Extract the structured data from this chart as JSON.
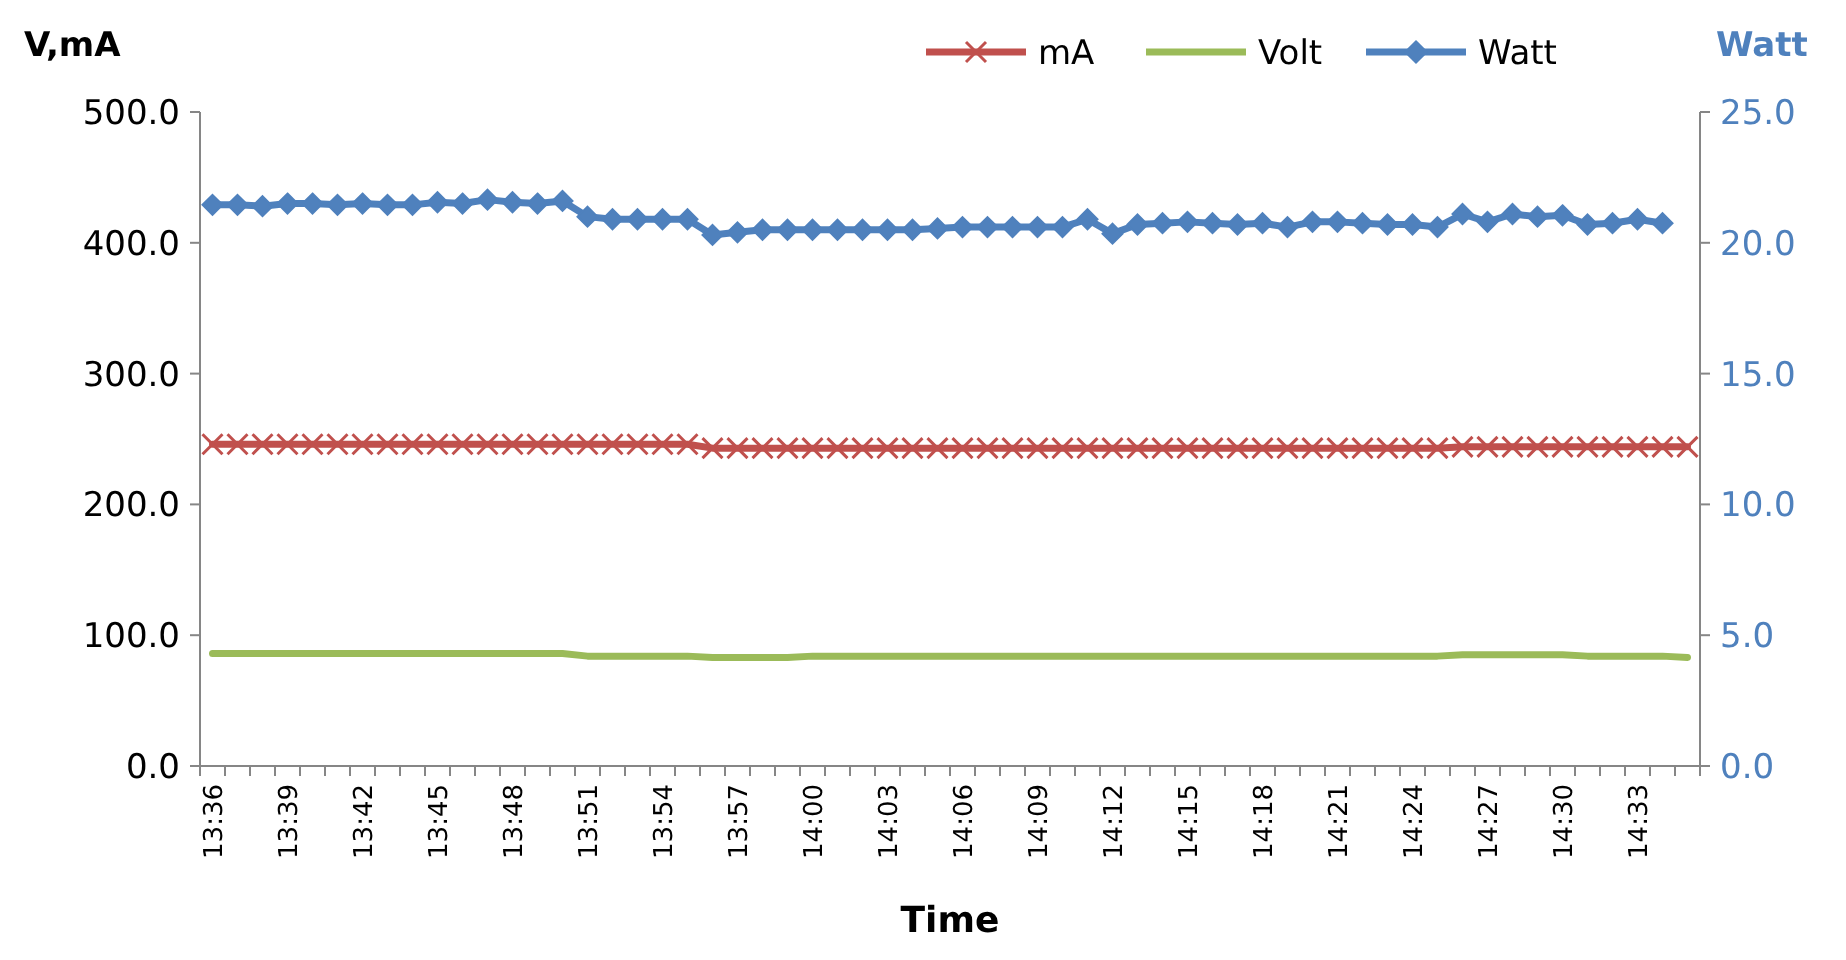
{
  "chart_data": {
    "type": "line",
    "ylabel": "V,mA",
    "y2label": "Watt",
    "xlabel": "Time",
    "categories": [
      "13:36",
      null,
      null,
      "13:39",
      null,
      null,
      "13:42",
      null,
      null,
      "13:45",
      null,
      null,
      "13:48",
      null,
      null,
      "13:51",
      null,
      null,
      "13:54",
      null,
      null,
      "13:57",
      null,
      null,
      "14:00",
      null,
      null,
      "14:03",
      null,
      null,
      "14:06",
      null,
      null,
      "14:09",
      null,
      null,
      "14:12",
      null,
      null,
      "14:15",
      null,
      null,
      "14:18",
      null,
      null,
      "14:21",
      null,
      null,
      "14:24",
      null,
      null,
      "14:27",
      null,
      null,
      "14:30",
      null,
      null,
      "14:33",
      null,
      null
    ],
    "ylim": [
      0,
      500
    ],
    "yticks": [
      {
        "value": 0,
        "label": "0.0"
      },
      {
        "value": 100,
        "label": "100.0"
      },
      {
        "value": 200,
        "label": "200.0"
      },
      {
        "value": 300,
        "label": "300.0"
      },
      {
        "value": 400,
        "label": "400.0"
      },
      {
        "value": 500,
        "label": "500.0"
      }
    ],
    "y2lim": [
      0,
      25
    ],
    "y2ticks": [
      {
        "value": 0,
        "label": "0.0"
      },
      {
        "value": 5,
        "label": "5.0"
      },
      {
        "value": 10,
        "label": "10.0"
      },
      {
        "value": 15,
        "label": "15.0"
      },
      {
        "value": 20,
        "label": "20.0"
      },
      {
        "value": 25,
        "label": "25.0"
      }
    ],
    "grid": false,
    "legend": "top right",
    "line_style": "solid",
    "series": [
      {
        "name": "mA",
        "color": "#c0504d",
        "marker": "cross",
        "values": [
          246,
          246,
          246,
          246,
          246,
          246,
          246,
          246,
          246,
          246,
          246,
          246,
          246,
          246,
          246,
          246,
          246,
          246,
          246,
          246,
          243,
          243,
          243,
          243,
          243,
          243,
          243,
          243,
          243,
          243,
          243,
          243,
          243,
          243,
          243,
          243,
          243,
          243,
          243,
          243,
          243,
          243,
          243,
          243,
          243,
          243,
          243,
          243,
          243,
          243,
          244,
          244,
          244,
          244,
          244,
          244,
          244,
          244,
          244,
          244
        ]
      },
      {
        "name": "Volt",
        "color": "#9bbb59",
        "marker": "none",
        "values": [
          86,
          86,
          86,
          86,
          86,
          86,
          86,
          86,
          86,
          86,
          86,
          86,
          86,
          86,
          86,
          84,
          84,
          84,
          84,
          84,
          83,
          83,
          83,
          83,
          84,
          84,
          84,
          84,
          84,
          84,
          84,
          84,
          84,
          84,
          84,
          84,
          84,
          84,
          84,
          84,
          84,
          84,
          84,
          84,
          84,
          84,
          84,
          84,
          84,
          84,
          85,
          85,
          85,
          85,
          85,
          84,
          84,
          84,
          84,
          83
        ]
      },
      {
        "name": "Watt",
        "color": "#4f81bd",
        "marker": "diamond",
        "axis": "y2",
        "values": [
          21.45,
          21.45,
          21.4,
          21.5,
          21.5,
          21.45,
          21.5,
          21.45,
          21.45,
          21.55,
          21.5,
          21.65,
          21.55,
          21.5,
          21.6,
          21.0,
          20.9,
          20.9,
          20.9,
          20.9,
          20.3,
          20.4,
          20.5,
          20.5,
          20.5,
          20.5,
          20.5,
          20.5,
          20.5,
          20.55,
          20.6,
          20.6,
          20.6,
          20.6,
          20.6,
          20.9,
          20.35,
          20.7,
          20.75,
          20.8,
          20.75,
          20.7,
          20.75,
          20.6,
          20.8,
          20.8,
          20.75,
          20.7,
          20.7,
          20.6,
          21.1,
          20.8,
          21.1,
          21.0,
          21.05,
          20.7,
          20.75,
          20.9,
          20.75,
          null
        ]
      }
    ]
  }
}
